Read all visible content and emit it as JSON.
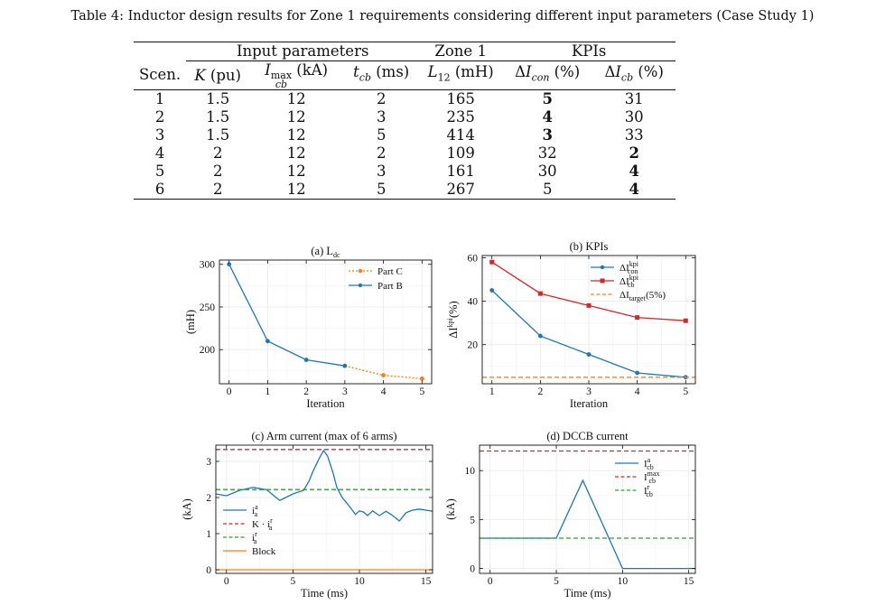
{
  "caption": "Table 4: Inductor design results for Zone 1 requirements considering different input parameters (Case Study 1)",
  "table": {
    "group_headers": [
      "Input parameters",
      "Zone 1",
      "KPIs"
    ],
    "col_headers": [
      "Scen.",
      "K (pu)",
      "I_cb^max (kA)",
      "t_cb (ms)",
      "L12 (mH)",
      "ΔI_con (%)",
      "ΔI_cb (%)"
    ],
    "rows": [
      {
        "scen": "1",
        "k": "1.5",
        "icb": "12",
        "tcb": "2",
        "l12": "165",
        "dicon": "5",
        "dicb": "31",
        "bold": "con"
      },
      {
        "scen": "2",
        "k": "1.5",
        "icb": "12",
        "tcb": "3",
        "l12": "235",
        "dicon": "4",
        "dicb": "30",
        "bold": "con"
      },
      {
        "scen": "3",
        "k": "1.5",
        "icb": "12",
        "tcb": "5",
        "l12": "414",
        "dicon": "3",
        "dicb": "33",
        "bold": "con"
      },
      {
        "scen": "4",
        "k": "2",
        "icb": "12",
        "tcb": "2",
        "l12": "109",
        "dicon": "32",
        "dicb": "2",
        "bold": "cb"
      },
      {
        "scen": "5",
        "k": "2",
        "icb": "12",
        "tcb": "3",
        "l12": "161",
        "dicon": "30",
        "dicb": "4",
        "bold": "cb"
      },
      {
        "scen": "6",
        "k": "2",
        "icb": "12",
        "tcb": "5",
        "l12": "267",
        "dicon": "5",
        "dicb": "4",
        "bold": "cb"
      }
    ]
  },
  "chart_data": [
    {
      "id": "a",
      "type": "line",
      "title": "(a) Ldc",
      "xlabel": "Iteration",
      "ylabel": "(mH)",
      "xlim": [
        -0.25,
        5.25
      ],
      "ylim": [
        160,
        305
      ],
      "xticks": [
        0,
        1,
        2,
        3,
        4,
        5
      ],
      "yticks": [
        200,
        250,
        300
      ],
      "legend_position": "top-right",
      "series": [
        {
          "name": "Part C",
          "color": "#ff7f0e",
          "style": "dotted",
          "x": [
            3,
            4,
            5
          ],
          "y": [
            181,
            170,
            166
          ]
        },
        {
          "name": "Part B",
          "color": "#1f77b4",
          "style": "solid",
          "x": [
            0,
            1,
            2,
            3
          ],
          "y": [
            300,
            210,
            188,
            181
          ]
        }
      ]
    },
    {
      "id": "b",
      "type": "line",
      "title": "(b) KPIs",
      "xlabel": "Iteration",
      "ylabel": "ΔI kpi (%)",
      "xlim": [
        0.8,
        5.2
      ],
      "ylim": [
        2,
        61
      ],
      "xticks": [
        1,
        2,
        3,
        4,
        5
      ],
      "yticks": [
        20,
        40,
        60
      ],
      "legend_position": "top-right",
      "series": [
        {
          "name": "ΔI con kpi",
          "color": "#1f77b4",
          "style": "solid",
          "marker": "circle",
          "x": [
            1,
            2,
            3,
            4,
            5
          ],
          "y": [
            45,
            24,
            15.5,
            7,
            5
          ]
        },
        {
          "name": "ΔI cb kpi",
          "color": "#d62728",
          "style": "solid",
          "marker": "square",
          "x": [
            1,
            2,
            3,
            4,
            5
          ],
          "y": [
            58,
            43.5,
            38,
            32.5,
            31
          ]
        },
        {
          "name": "ΔI target (5%)",
          "color": "#ff7f0e",
          "style": "dashed",
          "x": [
            0.8,
            5.2
          ],
          "y": [
            5,
            5
          ]
        }
      ]
    },
    {
      "id": "c",
      "type": "line",
      "title": "(c) Arm current (max of 6 arms)",
      "xlabel": "Time (ms)",
      "ylabel": "(kA)",
      "xlim": [
        -0.8,
        15.5
      ],
      "ylim": [
        -0.1,
        3.45
      ],
      "xticks": [
        0,
        5,
        10,
        15
      ],
      "yticks": [
        0,
        1,
        2,
        3
      ],
      "legend_position": "lower-left",
      "series": [
        {
          "name": "i a a",
          "color": "#1f77b4",
          "style": "solid",
          "x": [
            -0.8,
            0,
            1,
            2,
            3,
            4,
            5,
            5.8,
            6.2,
            6.5,
            7,
            7.3,
            7.6,
            8,
            8.3,
            8.7,
            9.2,
            9.7,
            10,
            10.3,
            10.6,
            11,
            11.5,
            12,
            12.5,
            13,
            13.5,
            14,
            14.5,
            15,
            15.5
          ],
          "y": [
            2.1,
            2.05,
            2.2,
            2.28,
            2.22,
            1.92,
            2.1,
            2.2,
            2.45,
            2.72,
            3.1,
            3.3,
            3.15,
            2.7,
            2.28,
            2.0,
            1.78,
            1.53,
            1.63,
            1.6,
            1.5,
            1.63,
            1.5,
            1.62,
            1.5,
            1.35,
            1.58,
            1.65,
            1.68,
            1.65,
            1.62
          ]
        },
        {
          "name": "K · i a r",
          "color": "#d62728",
          "style": "dashed",
          "x": [
            -0.8,
            15.5
          ],
          "y": [
            3.33,
            3.33
          ]
        },
        {
          "name": "i a r",
          "color": "#2ca02c",
          "style": "dashed",
          "x": [
            -0.8,
            15.5
          ],
          "y": [
            2.22,
            2.22
          ]
        },
        {
          "name": "Block",
          "color": "#ff7f0e",
          "style": "solid",
          "x": [
            -0.8,
            15.5
          ],
          "y": [
            0,
            0
          ]
        }
      ]
    },
    {
      "id": "d",
      "type": "line",
      "title": "(d) DCCB current",
      "xlabel": "Time (ms)",
      "ylabel": "(kA)",
      "xlim": [
        -0.8,
        15.5
      ],
      "ylim": [
        -0.5,
        12.6
      ],
      "xticks": [
        0,
        5,
        10,
        15
      ],
      "yticks": [
        0,
        5,
        10
      ],
      "legend_position": "top-right",
      "series": [
        {
          "name": "I cb a",
          "color": "#1f77b4",
          "style": "solid",
          "x": [
            -0.8,
            5,
            7,
            10,
            15.5
          ],
          "y": [
            3.1,
            3.1,
            9,
            0,
            0
          ]
        },
        {
          "name": "I cb max",
          "color": "#d62728",
          "style": "dashed",
          "x": [
            -0.8,
            15.5
          ],
          "y": [
            12,
            12
          ]
        },
        {
          "name": "I cb r",
          "color": "#2ca02c",
          "style": "dashed",
          "x": [
            -0.8,
            15.5
          ],
          "y": [
            3.1,
            3.1
          ]
        }
      ]
    }
  ]
}
